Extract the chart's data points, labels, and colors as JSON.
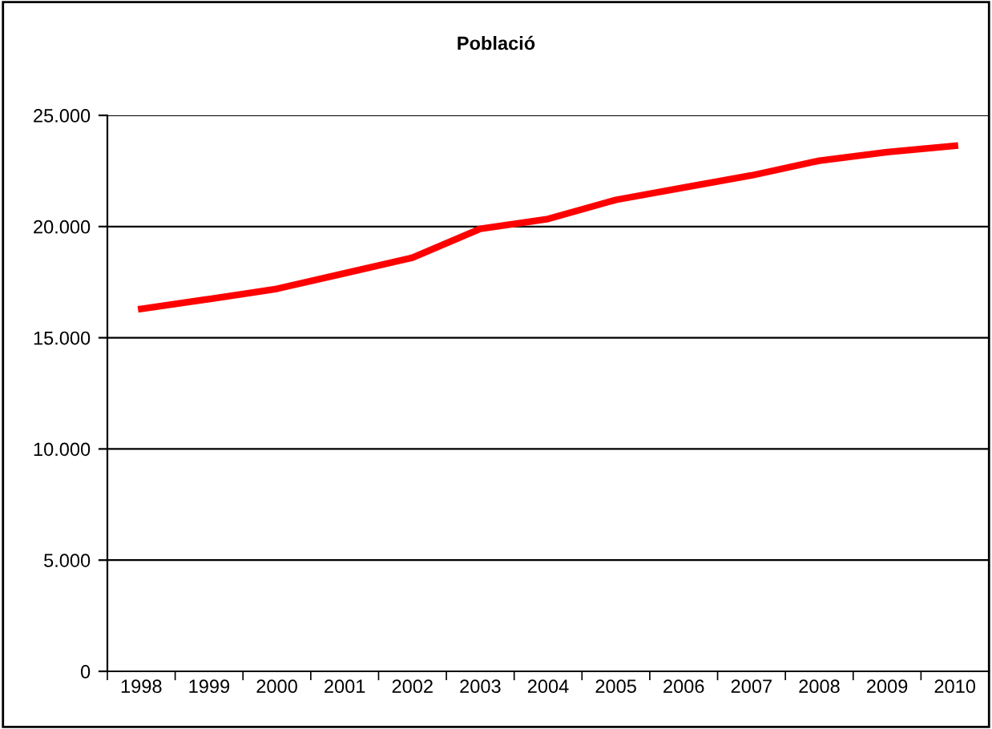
{
  "chart_data": {
    "type": "line",
    "title": "Població",
    "categories": [
      "1998",
      "1999",
      "2000",
      "2001",
      "2002",
      "2003",
      "2004",
      "2005",
      "2006",
      "2007",
      "2008",
      "2009",
      "2010"
    ],
    "series": [
      {
        "color": "#ff0000",
        "values": [
          16300,
          16740,
          17200,
          17900,
          18600,
          19900,
          20340,
          21200,
          21750,
          22300,
          22960,
          23350,
          23630
        ]
      }
    ],
    "ylim": [
      0,
      25000
    ],
    "yticks": [
      {
        "value": 0,
        "label": "0"
      },
      {
        "value": 5000,
        "label": "5.000"
      },
      {
        "value": 10000,
        "label": "10.000"
      },
      {
        "value": 15000,
        "label": "15.000"
      },
      {
        "value": 20000,
        "label": "20.000"
      },
      {
        "value": 25000,
        "label": "25.000"
      }
    ],
    "grid": "y",
    "marker": "none",
    "line_style": "solid",
    "legend": false
  }
}
